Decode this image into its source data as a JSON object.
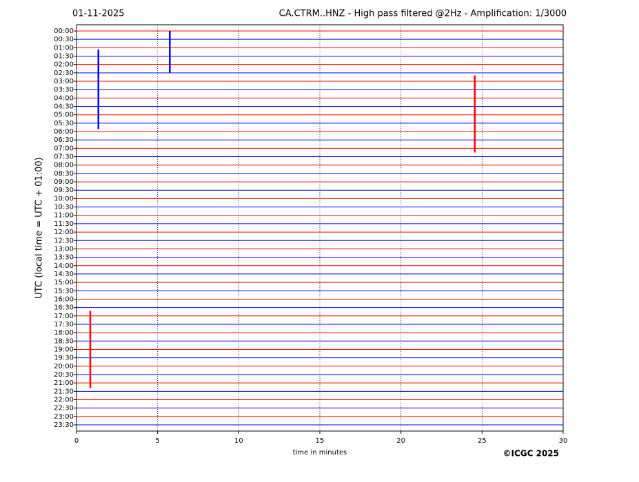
{
  "chart_data": {
    "type": "helicorder",
    "title_left": "01-11-2025",
    "title": "CA.CTRM..HNZ - High pass filtered @2Hz - Amplification: 1/3000",
    "xlabel": "time in minutes",
    "ylabel": "UTC (local time = UTC + 01:00)",
    "credit": "©ICGC 2025",
    "categories": [
      "00:00",
      "00:30",
      "01:00",
      "01:30",
      "02:00",
      "02:30",
      "03:00",
      "03:30",
      "04:00",
      "04:30",
      "05:00",
      "05:30",
      "06:00",
      "06:30",
      "07:00",
      "07:30",
      "08:00",
      "08:30",
      "09:00",
      "09:30",
      "10:00",
      "10:30",
      "11:00",
      "11:30",
      "12:00",
      "12:30",
      "13:00",
      "13:30",
      "14:00",
      "14:30",
      "15:00",
      "15:30",
      "16:00",
      "16:30",
      "17:00",
      "17:30",
      "18:00",
      "18:30",
      "19:00",
      "19:30",
      "20:00",
      "20:30",
      "21:00",
      "21:30",
      "22:00",
      "22:30",
      "23:00",
      "23:30"
    ],
    "trace_colors": [
      "#ff0000",
      "#0000ff"
    ],
    "xlim": [
      0,
      30
    ],
    "xticks": [
      0,
      5,
      10,
      15,
      20,
      25,
      30
    ],
    "grid": true,
    "events": [
      {
        "x": 1.35,
        "rows": [
          2.2,
          11.7
        ],
        "color": "#0000ff"
      },
      {
        "x": 5.75,
        "rows": [
          0,
          5
        ],
        "color": "#0000ff"
      },
      {
        "x": 24.55,
        "rows": [
          5.3,
          14.5
        ],
        "color": "#ff0000"
      },
      {
        "x": 0.85,
        "rows": [
          33.4,
          42.6
        ],
        "color": "#ff0000"
      }
    ]
  }
}
